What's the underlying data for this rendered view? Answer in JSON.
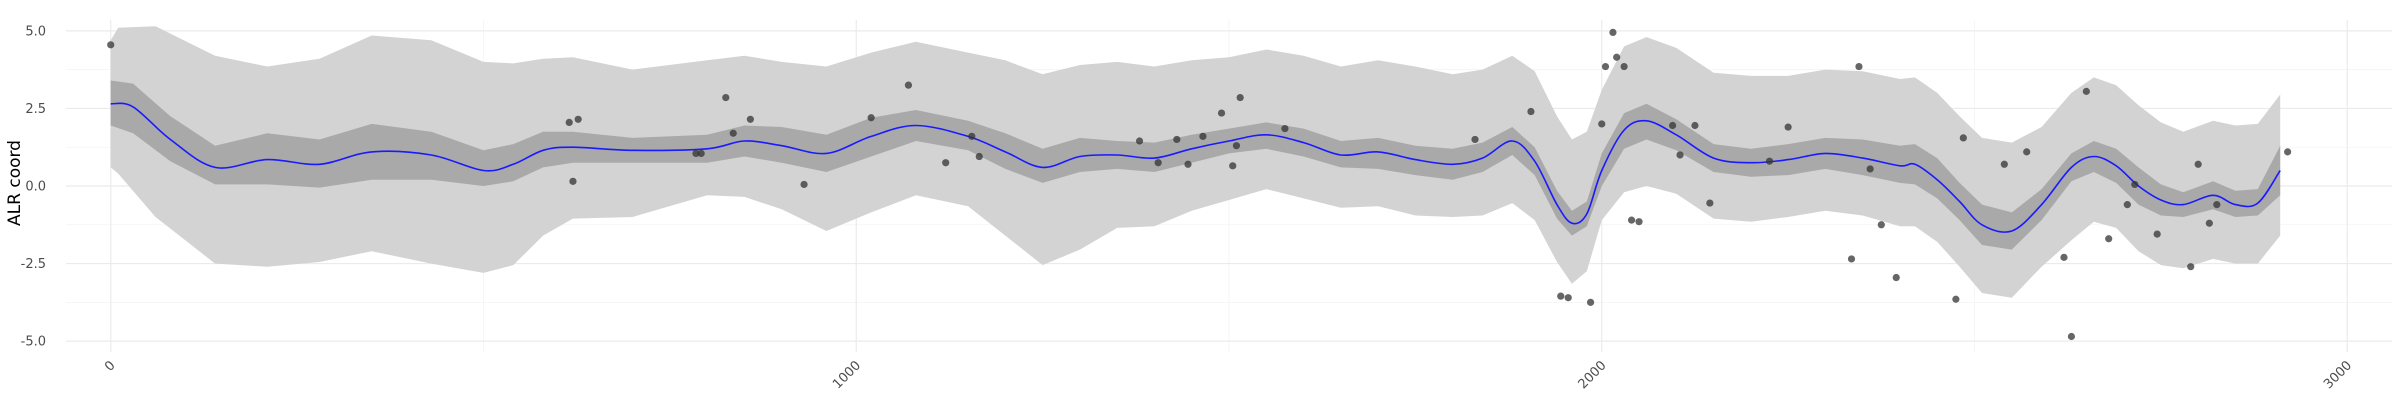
{
  "chart_data": {
    "type": "line",
    "title": "",
    "xlabel": "",
    "ylabel": "ALR coord",
    "xlim": [
      -60,
      3060
    ],
    "ylim": [
      -5.35,
      5.35
    ],
    "x_ticks": [
      0,
      1000,
      2000,
      3000
    ],
    "x_tick_labels": [
      "0",
      "1000",
      "2000",
      "3000"
    ],
    "y_ticks": [
      -5.0,
      -2.5,
      0.0,
      2.5,
      5.0
    ],
    "y_tick_labels": [
      "-5.0",
      "-2.5",
      "0.0",
      "2.5",
      "5.0"
    ],
    "grid": true,
    "legend": "none",
    "colors": {
      "mean_line": "#1a1aff",
      "inner_band": "#a9a9a9",
      "outer_band": "#d3d3d3",
      "points": "#333333"
    },
    "mean_curve": {
      "x": [
        0,
        30,
        80,
        140,
        210,
        280,
        350,
        430,
        500,
        540,
        580,
        620,
        700,
        800,
        850,
        900,
        960,
        1020,
        1080,
        1150,
        1200,
        1250,
        1300,
        1350,
        1400,
        1450,
        1500,
        1550,
        1600,
        1650,
        1700,
        1750,
        1800,
        1840,
        1880,
        1910,
        1940,
        1960,
        1980,
        2000,
        2030,
        2060,
        2100,
        2150,
        2200,
        2250,
        2300,
        2350,
        2400,
        2420,
        2450,
        2480,
        2510,
        2550,
        2590,
        2630,
        2660,
        2690,
        2720,
        2750,
        2780,
        2820,
        2850,
        2880,
        2910
      ],
      "y": [
        2.65,
        2.55,
        1.5,
        0.6,
        0.85,
        0.7,
        1.1,
        1.0,
        0.5,
        0.7,
        1.15,
        1.25,
        1.15,
        1.2,
        1.45,
        1.3,
        1.05,
        1.6,
        1.95,
        1.6,
        1.1,
        0.6,
        0.95,
        1.0,
        0.9,
        1.2,
        1.45,
        1.65,
        1.4,
        1.0,
        1.1,
        0.85,
        0.7,
        0.9,
        1.45,
        0.8,
        -0.6,
        -1.2,
        -0.9,
        0.5,
        1.8,
        2.1,
        1.65,
        0.9,
        0.75,
        0.85,
        1.05,
        0.9,
        0.65,
        0.7,
        0.2,
        -0.5,
        -1.25,
        -1.45,
        -0.6,
        0.6,
        0.95,
        0.65,
        0.0,
        -0.45,
        -0.6,
        -0.3,
        -0.6,
        -0.55,
        0.5
      ]
    },
    "inner_band": {
      "x": [
        0,
        30,
        80,
        140,
        210,
        280,
        350,
        430,
        500,
        540,
        580,
        620,
        700,
        800,
        850,
        900,
        960,
        1020,
        1080,
        1150,
        1200,
        1250,
        1300,
        1350,
        1400,
        1450,
        1500,
        1550,
        1600,
        1650,
        1700,
        1750,
        1800,
        1840,
        1880,
        1910,
        1940,
        1960,
        1980,
        2000,
        2030,
        2060,
        2100,
        2150,
        2200,
        2250,
        2300,
        2350,
        2400,
        2420,
        2450,
        2480,
        2510,
        2550,
        2590,
        2630,
        2660,
        2690,
        2720,
        2750,
        2780,
        2820,
        2850,
        2880,
        2910
      ],
      "lower": [
        1.95,
        1.7,
        0.8,
        0.05,
        0.05,
        -0.05,
        0.2,
        0.2,
        0.0,
        0.15,
        0.6,
        0.75,
        0.75,
        0.75,
        0.95,
        0.75,
        0.45,
        0.95,
        1.45,
        1.15,
        0.55,
        0.1,
        0.45,
        0.55,
        0.45,
        0.75,
        1.05,
        1.2,
        0.95,
        0.6,
        0.55,
        0.35,
        0.2,
        0.45,
        1.0,
        0.35,
        -1.05,
        -1.6,
        -1.3,
        0.0,
        1.2,
        1.5,
        1.15,
        0.45,
        0.3,
        0.35,
        0.55,
        0.35,
        0.1,
        0.05,
        -0.4,
        -1.1,
        -1.9,
        -2.05,
        -1.1,
        0.15,
        0.45,
        0.1,
        -0.6,
        -0.95,
        -1.0,
        -0.75,
        -1.0,
        -0.95,
        -0.3
      ],
      "upper": [
        3.4,
        3.3,
        2.25,
        1.3,
        1.7,
        1.5,
        2.0,
        1.75,
        1.15,
        1.35,
        1.75,
        1.75,
        1.55,
        1.65,
        1.95,
        1.9,
        1.65,
        2.2,
        2.45,
        2.1,
        1.7,
        1.2,
        1.55,
        1.45,
        1.4,
        1.65,
        1.85,
        2.05,
        1.85,
        1.45,
        1.55,
        1.3,
        1.2,
        1.4,
        1.9,
        1.25,
        -0.15,
        -0.8,
        -0.5,
        1.05,
        2.35,
        2.65,
        2.15,
        1.35,
        1.2,
        1.35,
        1.55,
        1.5,
        1.3,
        1.35,
        0.9,
        0.1,
        -0.6,
        -0.85,
        -0.1,
        1.05,
        1.45,
        1.2,
        0.6,
        0.05,
        -0.2,
        0.15,
        -0.15,
        -0.1,
        1.3
      ]
    },
    "outer_band": {
      "x": [
        0,
        10,
        60,
        140,
        210,
        280,
        350,
        430,
        500,
        540,
        580,
        620,
        700,
        800,
        850,
        900,
        960,
        1020,
        1080,
        1150,
        1200,
        1250,
        1300,
        1350,
        1400,
        1450,
        1500,
        1550,
        1600,
        1650,
        1700,
        1750,
        1800,
        1840,
        1880,
        1910,
        1940,
        1960,
        1980,
        2000,
        2030,
        2060,
        2100,
        2150,
        2200,
        2250,
        2300,
        2350,
        2400,
        2420,
        2450,
        2480,
        2510,
        2550,
        2590,
        2630,
        2660,
        2690,
        2720,
        2750,
        2780,
        2820,
        2850,
        2880,
        2910
      ],
      "lower": [
        0.6,
        0.4,
        -1.0,
        -2.5,
        -2.6,
        -2.45,
        -2.1,
        -2.5,
        -2.8,
        -2.55,
        -1.6,
        -1.05,
        -1.0,
        -0.3,
        -0.35,
        -0.75,
        -1.45,
        -0.85,
        -0.3,
        -0.65,
        -1.6,
        -2.55,
        -2.05,
        -1.35,
        -1.3,
        -0.8,
        -0.45,
        -0.1,
        -0.4,
        -0.7,
        -0.65,
        -0.95,
        -1.0,
        -0.95,
        -0.55,
        -1.1,
        -2.45,
        -3.15,
        -2.75,
        -1.1,
        -0.2,
        0.0,
        -0.25,
        -1.05,
        -1.15,
        -1.0,
        -0.8,
        -0.95,
        -1.3,
        -1.3,
        -1.8,
        -2.6,
        -3.45,
        -3.6,
        -2.6,
        -1.75,
        -1.15,
        -1.35,
        -2.1,
        -2.55,
        -2.65,
        -2.35,
        -2.5,
        -2.5,
        -1.6
      ],
      "upper": [
        4.7,
        5.1,
        5.15,
        4.2,
        3.85,
        4.1,
        4.85,
        4.7,
        4.0,
        3.95,
        4.1,
        4.15,
        3.75,
        4.05,
        4.2,
        4.0,
        3.85,
        4.3,
        4.65,
        4.3,
        4.05,
        3.6,
        3.9,
        4.0,
        3.85,
        4.05,
        4.15,
        4.4,
        4.2,
        3.85,
        4.05,
        3.85,
        3.6,
        3.75,
        4.2,
        3.7,
        2.25,
        1.5,
        1.75,
        3.1,
        4.5,
        4.8,
        4.45,
        3.65,
        3.55,
        3.55,
        3.75,
        3.7,
        3.45,
        3.5,
        3.0,
        2.25,
        1.55,
        1.4,
        1.9,
        3.0,
        3.5,
        3.25,
        2.6,
        2.05,
        1.75,
        2.1,
        1.95,
        2.0,
        2.95
      ]
    },
    "points": {
      "x": [
        0,
        615,
        620,
        627,
        785,
        792,
        825,
        835,
        858,
        930,
        1020,
        1070,
        1120,
        1155,
        1165,
        1380,
        1405,
        1430,
        1445,
        1465,
        1490,
        1505,
        1510,
        1515,
        1575,
        1830,
        1905,
        1945,
        1955,
        1985,
        2000,
        2005,
        2015,
        2020,
        2030,
        2040,
        2050,
        2095,
        2105,
        2125,
        2145,
        2225,
        2250,
        2335,
        2345,
        2360,
        2375,
        2395,
        2475,
        2485,
        2540,
        2570,
        2620,
        2630,
        2650,
        2680,
        2705,
        2715,
        2745,
        2790,
        2800,
        2815,
        2825,
        2920
      ],
      "y": [
        4.55,
        2.05,
        0.15,
        2.15,
        1.05,
        1.05,
        2.85,
        1.7,
        2.15,
        0.05,
        2.2,
        3.25,
        0.75,
        1.6,
        0.95,
        1.45,
        0.75,
        1.5,
        0.7,
        1.6,
        2.35,
        0.65,
        1.3,
        2.85,
        1.85,
        1.5,
        2.4,
        -3.55,
        -3.6,
        -3.75,
        2.0,
        3.85,
        4.95,
        4.15,
        3.85,
        -1.1,
        -1.15,
        1.95,
        1.0,
        1.95,
        -0.55,
        0.8,
        1.9,
        -2.35,
        3.85,
        0.55,
        -1.25,
        -2.95,
        -3.65,
        1.55,
        0.7,
        1.1,
        -2.3,
        -4.85,
        3.05,
        -1.7,
        -0.6,
        0.05,
        -1.55,
        -2.6,
        0.7,
        -1.2,
        -0.6,
        1.1
      ]
    }
  }
}
